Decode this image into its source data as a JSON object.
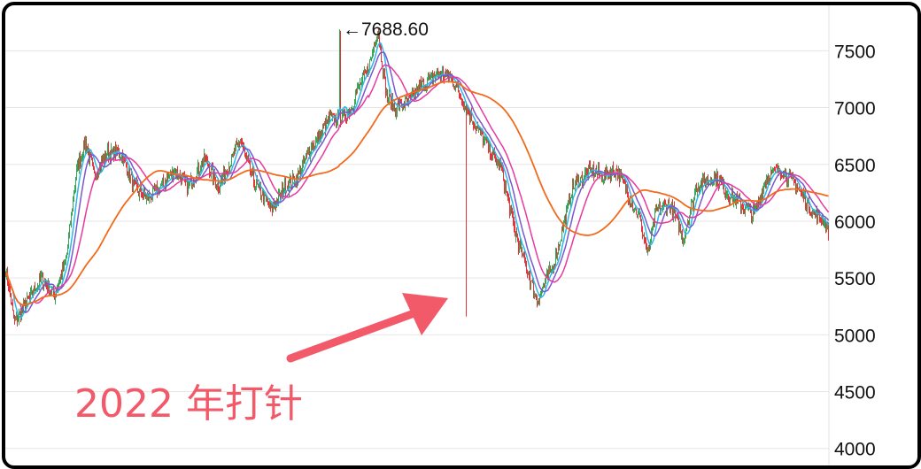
{
  "chart_data": {
    "type": "line",
    "title": "",
    "xlabel": "",
    "ylabel": "",
    "ylim": [
      3850,
      7900
    ],
    "yticks": [
      4000,
      4500,
      5000,
      5500,
      6000,
      6500,
      7000,
      7500
    ],
    "ytick_labels": [
      "4000",
      "4500",
      "5000",
      "5500",
      "6000",
      "6500",
      "7000",
      "7500"
    ],
    "grid": true,
    "n_points": 930,
    "price": [
      5580,
      5100,
      5300,
      5500,
      5350,
      5650,
      6450,
      6700,
      6400,
      6600,
      6600,
      6300,
      6200,
      6300,
      6450,
      6300,
      6550,
      6300,
      6700,
      6350,
      6100,
      6300,
      6400,
      6650,
      6750,
      6900,
      6900,
      7000,
      7200,
      7350,
      7690,
      7100,
      7000,
      7050,
      7200,
      7300,
      7250,
      7000,
      6850,
      6650,
      6450,
      5900,
      5300,
      5650,
      6300,
      6450,
      6400,
      6450,
      6200,
      6050,
      5700,
      6100,
      6150,
      5850,
      6300,
      6400,
      6250,
      6150,
      6050,
      6400,
      6450,
      6350,
      6150,
      6050,
      6000,
      5750,
      5600,
      5450,
      5600,
      5450,
      5350
    ],
    "price_x": [
      0,
      10,
      25,
      40,
      55,
      68,
      80,
      90,
      100,
      115,
      130,
      145,
      160,
      175,
      190,
      205,
      225,
      240,
      265,
      280,
      300,
      315,
      330,
      345,
      355,
      365,
      380,
      390,
      400,
      410,
      420,
      430,
      440,
      455,
      470,
      490,
      505,
      520,
      530,
      545,
      560,
      575,
      600,
      620,
      640,
      660,
      675,
      690,
      705,
      715,
      725,
      735,
      750,
      765,
      780,
      800,
      815,
      830,
      845,
      860,
      875,
      890,
      905,
      915,
      925,
      935,
      945,
      955,
      965,
      975,
      985
    ],
    "ma_colors": [
      "#2bb8e8",
      "#7a57d1",
      "#e8399e",
      "#f26a1b"
    ],
    "ma_windows": [
      5,
      10,
      20,
      60
    ],
    "candle_up_color": "#3aa655",
    "candle_down_color": "#e5343a",
    "peak_label": "←7688.60",
    "peak_value": 7688.6,
    "annotations": [
      {
        "text": "2022 年打针",
        "color": "#f25a6a"
      }
    ]
  }
}
